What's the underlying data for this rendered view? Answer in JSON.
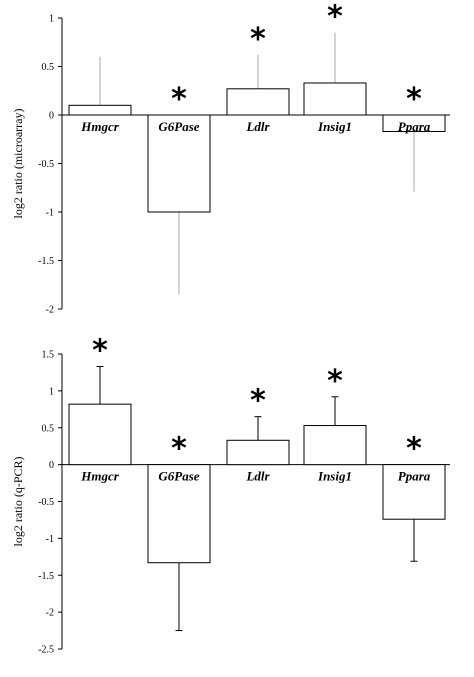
{
  "chart_data": [
    {
      "type": "bar",
      "ylabel": "log2 ratio (microarray)",
      "categories": [
        "Hmgcr",
        "G6Pase",
        "Ldlr",
        "Insig1",
        "Ppara"
      ],
      "values": [
        0.1,
        -1.0,
        0.27,
        0.33,
        -0.17
      ],
      "error_bars": [
        0.5,
        0.85,
        0.35,
        0.52,
        0.62
      ],
      "error_direction": [
        "up",
        "down",
        "up",
        "up",
        "down"
      ],
      "significant": [
        false,
        true,
        true,
        true,
        true
      ],
      "ylim": [
        -2,
        1
      ],
      "yticks": [
        1,
        0.5,
        0,
        -0.5,
        -1,
        -1.5,
        -2
      ],
      "ytick_labels": [
        "1",
        "0.5",
        "0",
        "-0.5",
        "-1",
        "-1.5",
        "-2"
      ],
      "significance_marker": "*",
      "bar_fill": "#ffffff",
      "error_color": "#aaaaaa"
    },
    {
      "type": "bar",
      "ylabel": "log2 ratio (q-PCR)",
      "categories": [
        "Hmgcr",
        "G6Pase",
        "Ldlr",
        "Insig1",
        "Ppara"
      ],
      "values": [
        0.82,
        -1.33,
        0.33,
        0.53,
        -0.74
      ],
      "error_bars": [
        0.51,
        0.92,
        0.32,
        0.39,
        0.57
      ],
      "error_direction": [
        "up",
        "down",
        "up",
        "up",
        "down"
      ],
      "significant": [
        true,
        true,
        true,
        true,
        true
      ],
      "ylim": [
        -2.5,
        1.5
      ],
      "yticks": [
        1.5,
        1,
        0.5,
        0,
        -0.5,
        -1,
        -1.5,
        -2,
        -2.5
      ],
      "ytick_labels": [
        "1.5",
        "1",
        "0.5",
        "0",
        "-0.5",
        "-1",
        "-1.5",
        "-2",
        "-2.5"
      ],
      "significance_marker": "*",
      "bar_fill": "#ffffff",
      "error_color": "#000000"
    }
  ]
}
